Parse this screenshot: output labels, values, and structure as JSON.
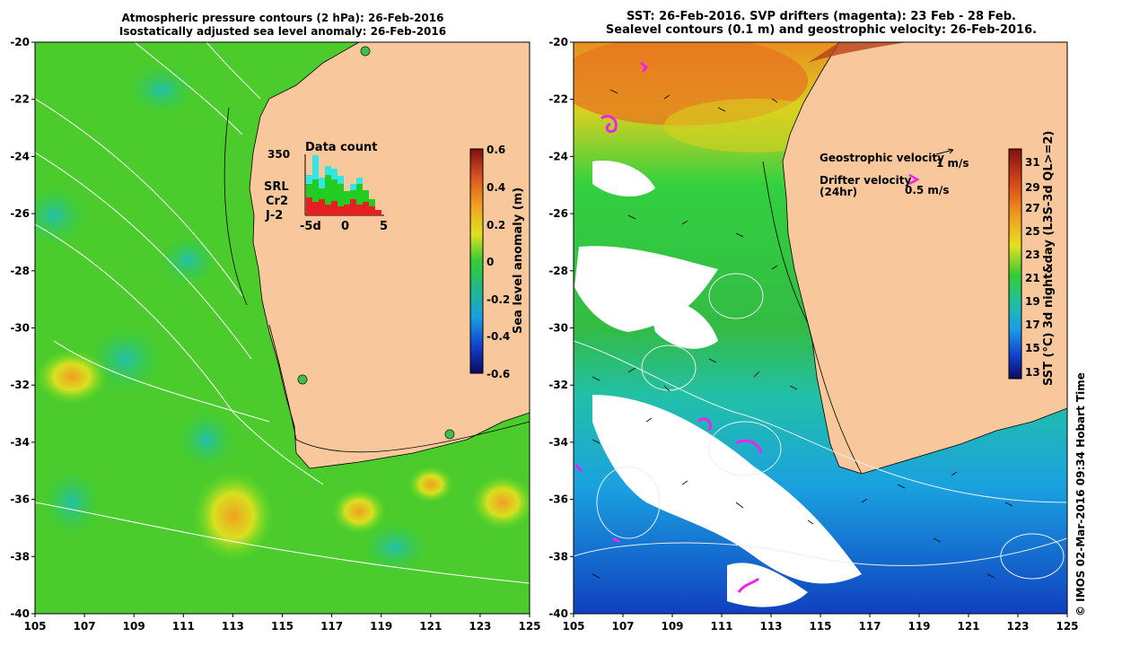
{
  "left_panel": {
    "title_line1": "Atmospheric pressure contours (2 hPa): 26-Feb-2016",
    "title_line2": "Isostatically adjusted sea level anomaly: 26-Feb-2016",
    "y_ticks": [
      "-20",
      "-22",
      "-24",
      "-26",
      "-28",
      "-30",
      "-32",
      "-34",
      "-36",
      "-38",
      "-40"
    ],
    "x_ticks": [
      "105",
      "107",
      "109",
      "111",
      "113",
      "115",
      "117",
      "119",
      "121",
      "123",
      "125"
    ],
    "colorbar": {
      "label": "Sea level anomaly (m)",
      "ticks": [
        "0.6",
        "0.4",
        "0.2",
        "0",
        "-0.2",
        "-0.4",
        "-0.6"
      ]
    },
    "inset": {
      "top_value": "350",
      "title": "Data count",
      "legend": [
        {
          "label": "SRL",
          "color": "#33e6e6"
        },
        {
          "label": "Cr2",
          "color": "#22cc22"
        },
        {
          "label": "J-2",
          "color": "#e62020"
        }
      ],
      "x_ticks": [
        "-5d",
        "0",
        "5"
      ]
    }
  },
  "right_panel": {
    "title_line1": "SST: 26-Feb-2016. SVP drifters (magenta): 23 Feb - 28 Feb.",
    "title_line2": "Sealevel contours (0.1 m) and geostrophic velocity: 26-Feb-2016.",
    "y_ticks": [
      "-20",
      "-22",
      "-24",
      "-26",
      "-28",
      "-30",
      "-32",
      "-34",
      "-36",
      "-38",
      "-40"
    ],
    "x_ticks": [
      "105",
      "107",
      "109",
      "111",
      "113",
      "115",
      "117",
      "119",
      "121",
      "123",
      "125"
    ],
    "legend": {
      "geo_label": "Geostrophic velocity",
      "geo_speed": "1 m/s",
      "drifter_label": "Drifter velocity",
      "drifter_sub": "(24hr)",
      "drifter_speed": "0.5 m/s"
    },
    "colorbar": {
      "label": "SST (°C) 3d night&day (L3S-3d QL>=2)",
      "ticks": [
        "31",
        "29",
        "27",
        "25",
        "23",
        "21",
        "19",
        "17",
        "15",
        "13"
      ]
    }
  },
  "credit": "© IMOS 02-Mar-2016 09:34 Hobart Time",
  "colors": {
    "land": "#f8c89c",
    "ocean_green": "#33cc33",
    "cloud": "#ffffff",
    "drifter": "#ee22ee"
  }
}
